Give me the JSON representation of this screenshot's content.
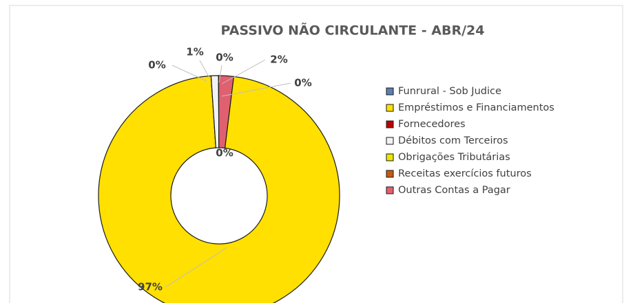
{
  "chart_data": {
    "type": "donut",
    "title": "PASSIVO NÃO CIRCULANTE - ABR/24",
    "categories": [
      "Funrural - Sob Judice",
      "Empréstimos e Financiamentos",
      "Fornecedores",
      "Débitos com Terceiros",
      "Obrigações Tributárias",
      "Receitas exercícios futuros",
      "Outras Contas a Pagar"
    ],
    "values": [
      0,
      97,
      0,
      1,
      0,
      0,
      2
    ],
    "value_labels": [
      "0%",
      "97%",
      "0%",
      "1%",
      "0%",
      "0%",
      "2%"
    ],
    "colors": [
      "#5b7fb0",
      "#ffe000",
      "#c00000",
      "#f2f2f2",
      "#e8e800",
      "#c65911",
      "#e06070"
    ],
    "legend": "right"
  }
}
